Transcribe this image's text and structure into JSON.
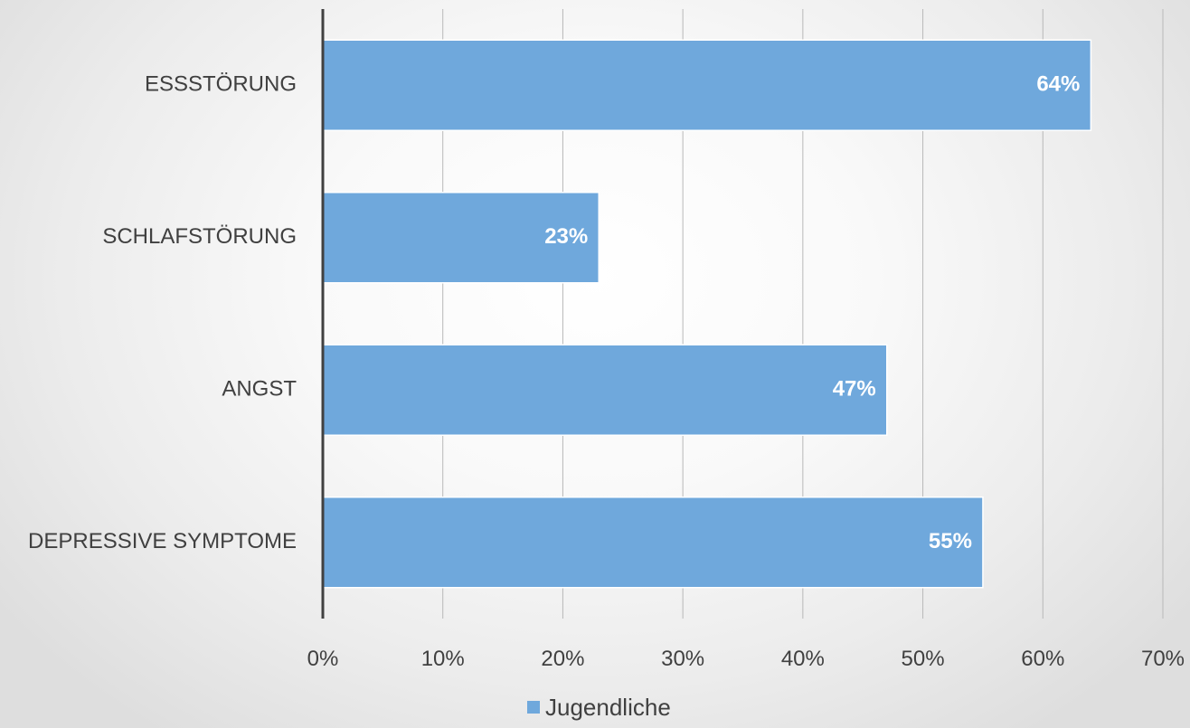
{
  "chart_data": {
    "type": "bar",
    "orientation": "horizontal",
    "categories": [
      "ESSSTÖRUNG",
      "SCHLAFSTÖRUNG",
      "ANGST",
      "DEPRESSIVE SYMPTOME"
    ],
    "series": [
      {
        "name": "Jugendliche",
        "values": [
          64,
          23,
          47,
          55
        ],
        "data_labels": [
          "64%",
          "23%",
          "47%",
          "55%"
        ],
        "color": "#6fa8dc"
      }
    ],
    "xlim": [
      0,
      70
    ],
    "x_ticks": [
      0,
      10,
      20,
      30,
      40,
      50,
      60,
      70
    ],
    "x_tick_labels": [
      "0%",
      "10%",
      "20%",
      "30%",
      "40%",
      "50%",
      "60%",
      "70%"
    ],
    "title": "",
    "xlabel": "",
    "ylabel": "",
    "grid": "vertical",
    "legend": {
      "position": "bottom",
      "entries": [
        "Jugendliche"
      ]
    }
  },
  "colors": {
    "bar": "#6fa8dc",
    "bar_edge": "#ffffff",
    "gridline": "#b8b8b8",
    "axis": "#404040",
    "text": "#404040"
  }
}
